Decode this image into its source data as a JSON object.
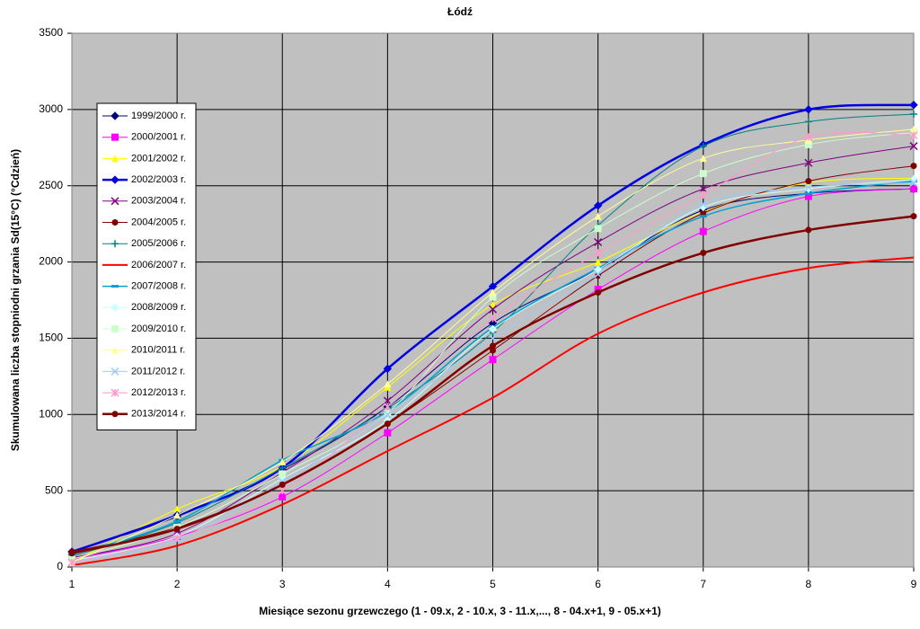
{
  "chart_data": {
    "type": "line",
    "title": "Łódź",
    "x_label": "Miesiące sezonu grzewczego (1 - 09.x, 2 - 10.x, 3 - 11.x,..., 8 - 04.x+1, 9 - 05.x+1)",
    "y_label": "Skumulowana liczba stopniodni grzania Sd(15°C) (°Cdzień)",
    "x": [
      1,
      2,
      3,
      4,
      5,
      6,
      7,
      8,
      9
    ],
    "xlim": [
      1,
      9
    ],
    "xticks": [
      1,
      2,
      3,
      4,
      5,
      6,
      7,
      8,
      9
    ],
    "ylim": [
      0,
      3500
    ],
    "yticks": [
      0,
      500,
      1000,
      1500,
      2000,
      2500,
      3000,
      3500
    ],
    "grid": true,
    "legend": "left",
    "series": [
      {
        "name": "1999/2000 r.",
        "color": "#000080",
        "marker": "diamond",
        "width": 1,
        "values": [
          100,
          330,
          640,
          1050,
          1600,
          1950,
          2340,
          2450,
          2480
        ]
      },
      {
        "name": "2000/2001 r.",
        "color": "#ff00ff",
        "marker": "square",
        "width": 1,
        "values": [
          50,
          200,
          460,
          880,
          1360,
          1820,
          2200,
          2430,
          2480
        ]
      },
      {
        "name": "2001/2002 r.",
        "color": "#ffff00",
        "marker": "triangle",
        "width": 1,
        "values": [
          30,
          380,
          660,
          1180,
          1720,
          2000,
          2330,
          2520,
          2550
        ]
      },
      {
        "name": "2002/2003 r.",
        "color": "#0000e0",
        "marker": "diamond",
        "width": 2.5,
        "values": [
          100,
          340,
          650,
          1300,
          1840,
          2370,
          2770,
          3000,
          3030
        ]
      },
      {
        "name": "2003/2004 r.",
        "color": "#800080",
        "marker": "x",
        "width": 1,
        "values": [
          60,
          220,
          620,
          1090,
          1690,
          2130,
          2480,
          2650,
          2760
        ]
      },
      {
        "name": "2004/2005 r.",
        "color": "#800000",
        "marker": "circle",
        "width": 1,
        "values": [
          100,
          260,
          540,
          940,
          1420,
          1910,
          2320,
          2530,
          2630
        ]
      },
      {
        "name": "2005/2006 r.",
        "color": "#008080",
        "marker": "plus",
        "width": 1,
        "values": [
          70,
          290,
          650,
          1040,
          1540,
          2240,
          2760,
          2920,
          2970
        ]
      },
      {
        "name": "2006/2007 r.",
        "color": "#ff0000",
        "marker": "none",
        "width": 2,
        "values": [
          10,
          140,
          410,
          760,
          1110,
          1530,
          1800,
          1960,
          2030
        ]
      },
      {
        "name": "2007/2008 r.",
        "color": "#00a0d0",
        "marker": "dash",
        "width": 1.5,
        "values": [
          80,
          300,
          700,
          1020,
          1570,
          1960,
          2300,
          2450,
          2530
        ]
      },
      {
        "name": "2008/2009 r.",
        "color": "#ccffff",
        "marker": "diamond",
        "width": 1,
        "values": [
          40,
          200,
          580,
          960,
          1560,
          1950,
          2360,
          2480,
          2540
        ]
      },
      {
        "name": "2009/2010 r.",
        "color": "#ccffcc",
        "marker": "square",
        "width": 1,
        "values": [
          50,
          260,
          610,
          1010,
          1770,
          2220,
          2580,
          2770,
          2850
        ]
      },
      {
        "name": "2010/2011 r.",
        "color": "#ffff99",
        "marker": "triangle",
        "width": 1,
        "values": [
          30,
          340,
          690,
          1200,
          1800,
          2300,
          2680,
          2800,
          2870
        ]
      },
      {
        "name": "2011/2012 r.",
        "color": "#99ccff",
        "marker": "x",
        "width": 1,
        "values": [
          30,
          180,
          560,
          1000,
          1500,
          1920,
          2380,
          2490,
          2520
        ]
      },
      {
        "name": "2012/2013 r.",
        "color": "#ff99cc",
        "marker": "star",
        "width": 1,
        "values": [
          30,
          190,
          500,
          1050,
          1630,
          2060,
          2440,
          2820,
          2830
        ]
      },
      {
        "name": "2013/2014 r.",
        "color": "#800000",
        "marker": "circle",
        "width": 2.5,
        "values": [
          90,
          250,
          540,
          940,
          1450,
          1800,
          2060,
          2210,
          2300
        ]
      }
    ]
  }
}
